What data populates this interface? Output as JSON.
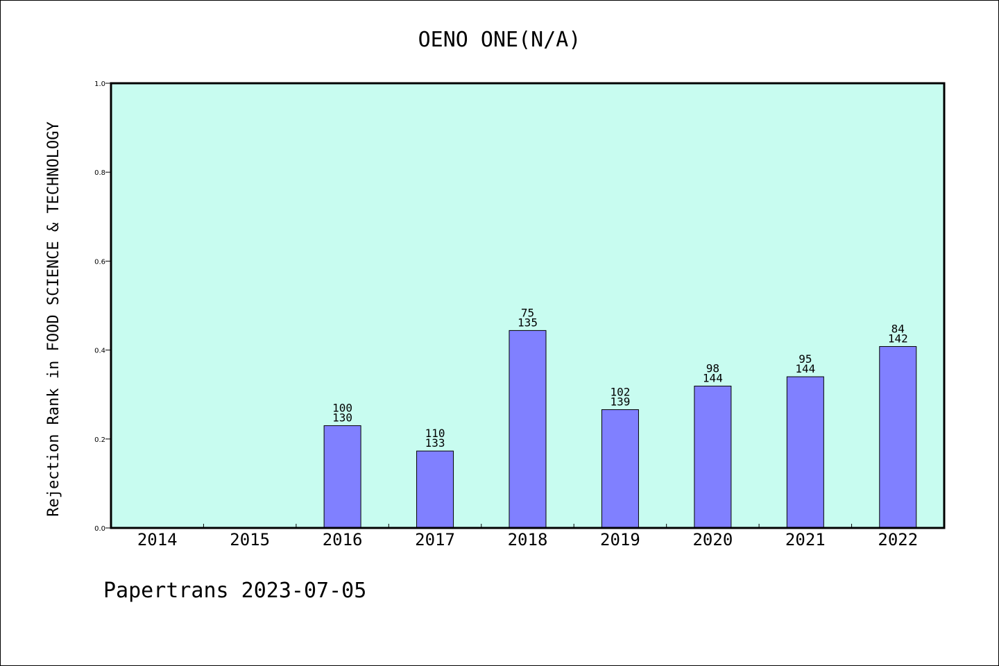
{
  "footer": "Papertrans 2023-07-05",
  "chart_data": {
    "type": "bar",
    "title": "OENO ONE(N/A)",
    "ylabel": "Rejection Rank in FOOD SCIENCE & TECHNOLOGY",
    "xlabel": "",
    "ylim": [
      0.0,
      1.0
    ],
    "yticks": [
      "0.0",
      "0.2",
      "0.4",
      "0.6",
      "0.8",
      "1.0"
    ],
    "categories": [
      "2014",
      "2015",
      "2016",
      "2017",
      "2018",
      "2019",
      "2020",
      "2021",
      "2022"
    ],
    "values": [
      null,
      null,
      0.23,
      0.173,
      0.444,
      0.266,
      0.319,
      0.34,
      0.408
    ],
    "labels_top": [
      null,
      null,
      "100",
      "110",
      "75",
      "102",
      "98",
      "95",
      "84"
    ],
    "labels_bottom": [
      null,
      null,
      "130",
      "133",
      "135",
      "139",
      "144",
      "144",
      "142"
    ],
    "colors": {
      "plot_bg": "#c8fcf0",
      "bar": "#8080ff"
    },
    "grid": false,
    "legend": "none"
  }
}
